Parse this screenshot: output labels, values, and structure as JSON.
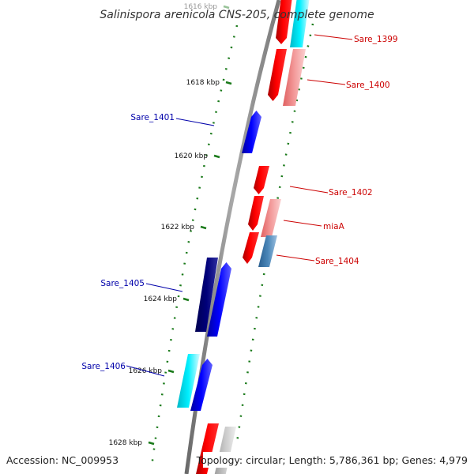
{
  "title": "Salinispora arenicola CNS-205, complete genome",
  "footer": {
    "accession": "Accession: NC_009953",
    "topology": "Topology: circular; Length: 5,786,361 bp; Genes: 4,979"
  },
  "ticks": [
    "1616 kbp",
    "1618 kbp",
    "1620 kbp",
    "1622 kbp",
    "1624 kbp",
    "1626 kbp",
    "1628 kbp"
  ],
  "genes": [
    {
      "name": "Sare_1399",
      "strand": "+",
      "color": "#cc0000"
    },
    {
      "name": "Sare_1400",
      "strand": "+",
      "color": "#cc0000"
    },
    {
      "name": "Sare_1401",
      "strand": "-",
      "color": "#0000aa"
    },
    {
      "name": "Sare_1402",
      "strand": "+",
      "color": "#cc0000"
    },
    {
      "name": "miaA",
      "strand": "+",
      "color": "#cc0000"
    },
    {
      "name": "Sare_1404",
      "strand": "+",
      "color": "#cc0000"
    },
    {
      "name": "Sare_1405",
      "strand": "-",
      "color": "#0000aa"
    },
    {
      "name": "Sare_1406",
      "strand": "-",
      "color": "#0000aa"
    }
  ],
  "colors": {
    "backbone": "#8a8a8a",
    "tick_mark": "#1a7a1a",
    "plus_label": "#cc0000",
    "minus_label": "#0000aa",
    "gene_red": "#ff0000",
    "gene_pink": "#f08888",
    "gene_cyan": "#00e5ee",
    "gene_blue": "#0000ee",
    "gene_navy": "#00007a",
    "gene_steel": "#4a86b8",
    "gene_gray": "#c0c0c0"
  }
}
